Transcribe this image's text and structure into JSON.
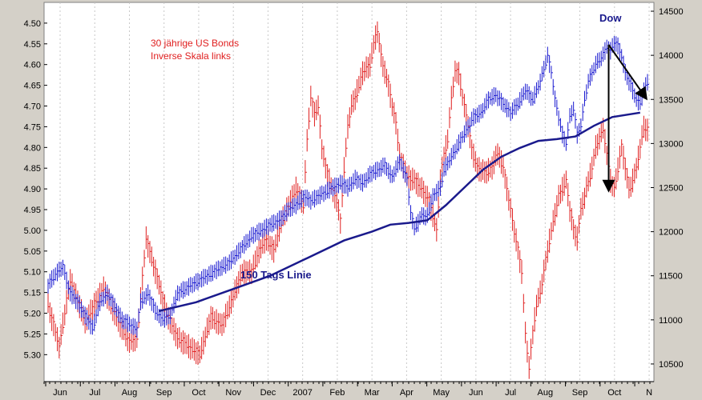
{
  "chart_data": {
    "type": "line",
    "title": "",
    "annotations": {
      "bonds_label_line1": "30 jährige US Bonds",
      "bonds_label_line2": "Inverse Skala links",
      "dow_label": "Dow",
      "ma_label": "150 Tags Linie"
    },
    "left_axis": {
      "scale": "inverse",
      "ticks": [
        "4.50",
        "4.55",
        "4.60",
        "4.65",
        "4.70",
        "4.75",
        "4.80",
        "4.85",
        "4.90",
        "4.95",
        "5.00",
        "5.05",
        "5.10",
        "5.15",
        "5.20",
        "5.25",
        "5.30"
      ],
      "range": [
        4.45,
        5.365
      ]
    },
    "right_axis": {
      "ticks": [
        "14500",
        "14000",
        "13500",
        "13000",
        "12500",
        "12000",
        "11500",
        "11000",
        "10500"
      ],
      "range": [
        10300,
        14600
      ]
    },
    "x_labels": [
      "Jun",
      "Jul",
      "Aug",
      "Sep",
      "Oct",
      "Nov",
      "Dec",
      "2007",
      "Feb",
      "Mar",
      "Apr",
      "May",
      "Jun",
      "Jul",
      "Aug",
      "Sep",
      "Oct",
      "N"
    ],
    "series": [
      {
        "name": "30 jährige US Bonds",
        "color": "#e02020",
        "axis": "left",
        "style": "ohlc",
        "points": [
          [
            0,
            5.18
          ],
          [
            6,
            5.28
          ],
          [
            12,
            5.12
          ],
          [
            20,
            5.22
          ],
          [
            30,
            5.14
          ],
          [
            38,
            5.22
          ],
          [
            44,
            5.27
          ],
          [
            48,
            5.26
          ],
          [
            53,
            5.02
          ],
          [
            58,
            5.1
          ],
          [
            64,
            5.2
          ],
          [
            70,
            5.26
          ],
          [
            76,
            5.28
          ],
          [
            82,
            5.3
          ],
          [
            88,
            5.21
          ],
          [
            94,
            5.23
          ],
          [
            100,
            5.16
          ],
          [
            105,
            5.1
          ],
          [
            110,
            5.1
          ],
          [
            114,
            5.05
          ],
          [
            118,
            5.02
          ],
          [
            122,
            5.05
          ],
          [
            126,
            4.98
          ],
          [
            130,
            4.94
          ],
          [
            134,
            4.9
          ],
          [
            138,
            4.94
          ],
          [
            140,
            4.78
          ],
          [
            142,
            4.68
          ],
          [
            144,
            4.72
          ],
          [
            146,
            4.7
          ],
          [
            148,
            4.8
          ],
          [
            150,
            4.85
          ],
          [
            152,
            4.88
          ],
          [
            156,
            4.93
          ],
          [
            158,
            4.98
          ],
          [
            160,
            4.85
          ],
          [
            162,
            4.75
          ],
          [
            164,
            4.7
          ],
          [
            166,
            4.68
          ],
          [
            170,
            4.62
          ],
          [
            174,
            4.6
          ],
          [
            176,
            4.55
          ],
          [
            178,
            4.52
          ],
          [
            180,
            4.58
          ],
          [
            182,
            4.62
          ],
          [
            184,
            4.65
          ],
          [
            186,
            4.7
          ],
          [
            188,
            4.74
          ],
          [
            190,
            4.82
          ],
          [
            194,
            4.87
          ],
          [
            198,
            4.88
          ],
          [
            202,
            4.9
          ],
          [
            206,
            4.93
          ],
          [
            210,
            5.0
          ],
          [
            212,
            4.88
          ],
          [
            214,
            4.82
          ],
          [
            216,
            4.78
          ],
          [
            218,
            4.68
          ],
          [
            220,
            4.62
          ],
          [
            222,
            4.62
          ],
          [
            224,
            4.68
          ],
          [
            226,
            4.72
          ],
          [
            228,
            4.78
          ],
          [
            230,
            4.82
          ],
          [
            232,
            4.85
          ],
          [
            236,
            4.86
          ],
          [
            240,
            4.85
          ],
          [
            242,
            4.82
          ],
          [
            244,
            4.82
          ],
          [
            246,
            4.85
          ],
          [
            248,
            4.9
          ],
          [
            250,
            4.95
          ],
          [
            252,
            5.0
          ],
          [
            254,
            5.05
          ],
          [
            256,
            5.1
          ],
          [
            258,
            5.25
          ],
          [
            260,
            5.33
          ],
          [
            262,
            5.25
          ],
          [
            264,
            5.18
          ],
          [
            266,
            5.15
          ],
          [
            268,
            5.1
          ],
          [
            270,
            5.05
          ],
          [
            272,
            5.0
          ],
          [
            276,
            4.92
          ],
          [
            280,
            4.88
          ],
          [
            282,
            4.95
          ],
          [
            284,
            5.0
          ],
          [
            286,
            5.02
          ],
          [
            288,
            4.95
          ],
          [
            290,
            4.92
          ],
          [
            292,
            4.88
          ],
          [
            294,
            4.85
          ],
          [
            296,
            4.8
          ],
          [
            298,
            4.78
          ],
          [
            300,
            4.75
          ],
          [
            302,
            4.82
          ],
          [
            304,
            4.88
          ],
          [
            306,
            4.9
          ],
          [
            308,
            4.85
          ],
          [
            310,
            4.8
          ],
          [
            312,
            4.85
          ],
          [
            314,
            4.9
          ],
          [
            316,
            4.88
          ],
          [
            318,
            4.85
          ],
          [
            320,
            4.8
          ],
          [
            322,
            4.75
          ],
          [
            324,
            4.76
          ]
        ]
      },
      {
        "name": "Dow",
        "color": "#1a1ad0",
        "axis": "right",
        "style": "ohlc",
        "points": [
          [
            0,
            11400
          ],
          [
            4,
            11520
          ],
          [
            8,
            11600
          ],
          [
            12,
            11300
          ],
          [
            16,
            11200
          ],
          [
            20,
            11050
          ],
          [
            24,
            10900
          ],
          [
            28,
            11200
          ],
          [
            32,
            11300
          ],
          [
            36,
            11150
          ],
          [
            40,
            11000
          ],
          [
            44,
            10950
          ],
          [
            48,
            10900
          ],
          [
            50,
            11200
          ],
          [
            54,
            11300
          ],
          [
            58,
            11100
          ],
          [
            62,
            11000
          ],
          [
            66,
            11050
          ],
          [
            70,
            11300
          ],
          [
            74,
            11350
          ],
          [
            78,
            11400
          ],
          [
            82,
            11450
          ],
          [
            86,
            11500
          ],
          [
            90,
            11550
          ],
          [
            94,
            11600
          ],
          [
            98,
            11650
          ],
          [
            102,
            11750
          ],
          [
            106,
            11850
          ],
          [
            110,
            11950
          ],
          [
            114,
            12000
          ],
          [
            118,
            12050
          ],
          [
            122,
            12100
          ],
          [
            126,
            12150
          ],
          [
            130,
            12250
          ],
          [
            134,
            12300
          ],
          [
            138,
            12400
          ],
          [
            142,
            12350
          ],
          [
            146,
            12400
          ],
          [
            150,
            12450
          ],
          [
            154,
            12500
          ],
          [
            158,
            12550
          ],
          [
            162,
            12500
          ],
          [
            166,
            12600
          ],
          [
            170,
            12550
          ],
          [
            174,
            12650
          ],
          [
            178,
            12700
          ],
          [
            182,
            12750
          ],
          [
            186,
            12620
          ],
          [
            190,
            12800
          ],
          [
            194,
            12600
          ],
          [
            196,
            12200
          ],
          [
            198,
            12050
          ],
          [
            200,
            12100
          ],
          [
            202,
            12200
          ],
          [
            204,
            12150
          ],
          [
            206,
            12250
          ],
          [
            208,
            12400
          ],
          [
            210,
            12450
          ],
          [
            212,
            12500
          ],
          [
            214,
            12700
          ],
          [
            218,
            12850
          ],
          [
            222,
            13000
          ],
          [
            226,
            13150
          ],
          [
            230,
            13300
          ],
          [
            234,
            13350
          ],
          [
            238,
            13500
          ],
          [
            242,
            13550
          ],
          [
            246,
            13450
          ],
          [
            250,
            13350
          ],
          [
            254,
            13450
          ],
          [
            258,
            13600
          ],
          [
            262,
            13500
          ],
          [
            266,
            13700
          ],
          [
            270,
            14000
          ],
          [
            272,
            13800
          ],
          [
            274,
            13500
          ],
          [
            276,
            13300
          ],
          [
            278,
            13100
          ],
          [
            280,
            13000
          ],
          [
            282,
            13300
          ],
          [
            284,
            13400
          ],
          [
            286,
            13100
          ],
          [
            288,
            13200
          ],
          [
            290,
            13500
          ],
          [
            292,
            13700
          ],
          [
            294,
            13800
          ],
          [
            296,
            13900
          ],
          [
            298,
            13950
          ],
          [
            300,
            14000
          ],
          [
            302,
            14100
          ],
          [
            304,
            14050
          ],
          [
            306,
            14150
          ],
          [
            308,
            14100
          ],
          [
            310,
            14000
          ],
          [
            312,
            13800
          ],
          [
            314,
            13700
          ],
          [
            316,
            13600
          ],
          [
            318,
            13500
          ],
          [
            320,
            13450
          ],
          [
            322,
            13600
          ],
          [
            324,
            13700
          ]
        ]
      },
      {
        "name": "150 Tags Linie",
        "color": "#1a1a8c",
        "axis": "right",
        "style": "line",
        "points": [
          [
            60,
            11100
          ],
          [
            80,
            11200
          ],
          [
            100,
            11350
          ],
          [
            120,
            11500
          ],
          [
            140,
            11700
          ],
          [
            160,
            11900
          ],
          [
            175,
            12000
          ],
          [
            185,
            12080
          ],
          [
            195,
            12100
          ],
          [
            205,
            12130
          ],
          [
            215,
            12300
          ],
          [
            225,
            12500
          ],
          [
            235,
            12700
          ],
          [
            245,
            12850
          ],
          [
            255,
            12950
          ],
          [
            265,
            13030
          ],
          [
            275,
            13050
          ],
          [
            285,
            13080
          ],
          [
            295,
            13200
          ],
          [
            305,
            13300
          ],
          [
            320,
            13350
          ]
        ]
      }
    ],
    "arrows": [
      {
        "from": [
          303,
          14120
        ],
        "to": [
          323,
          13520
        ]
      },
      {
        "from": [
          303,
          14120
        ],
        "to": [
          303,
          12480
        ]
      }
    ],
    "grid": true,
    "legend": "none"
  }
}
